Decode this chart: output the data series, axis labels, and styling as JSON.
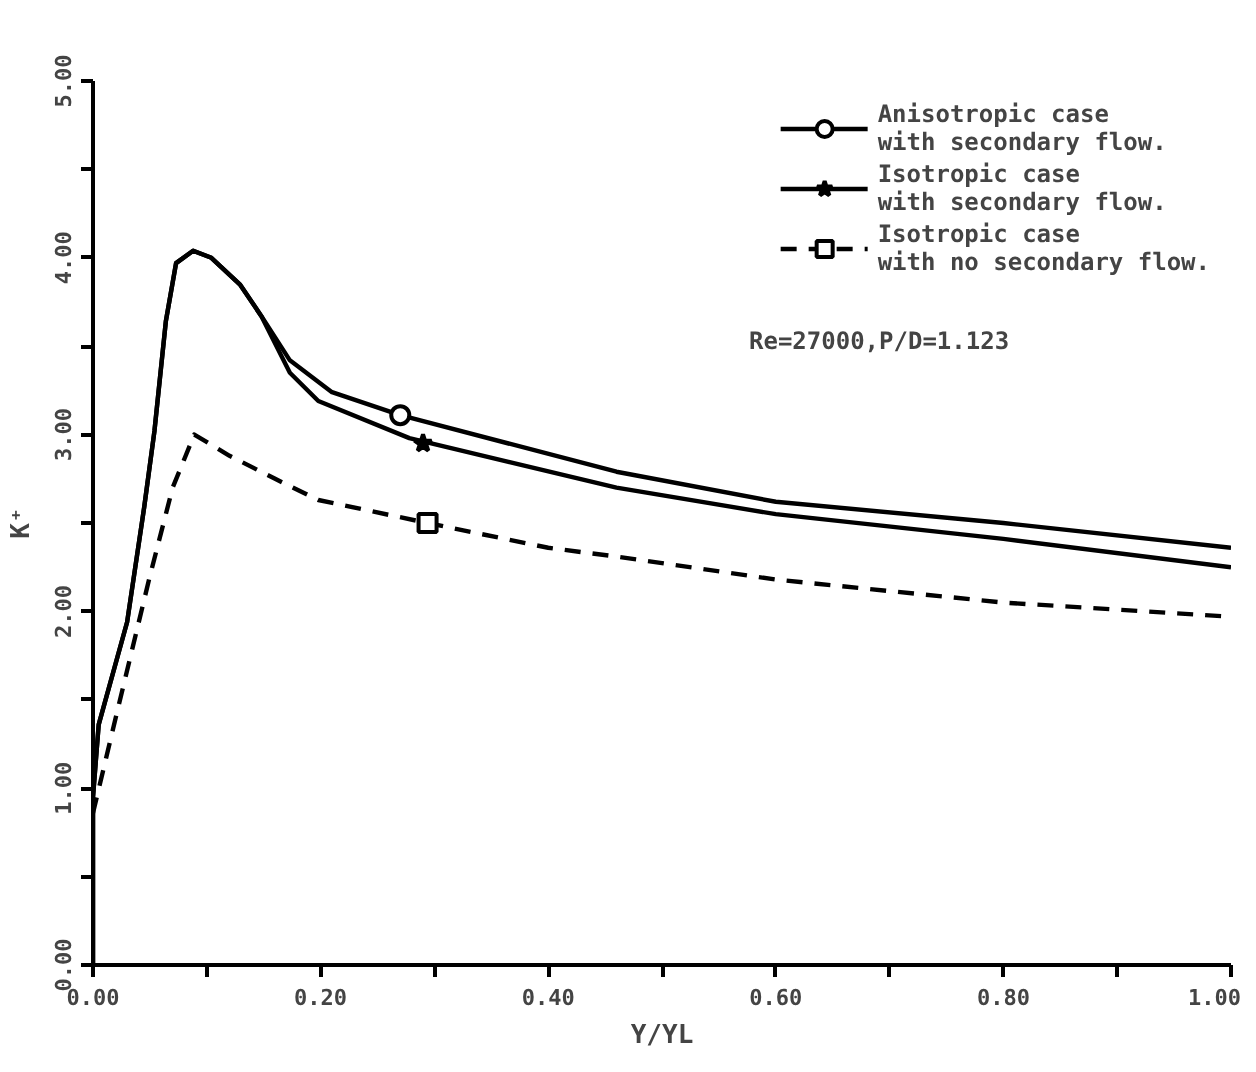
{
  "chart_data": {
    "type": "line",
    "xlabel": "Y/YL",
    "ylabel": "K⁺",
    "xlim": [
      0,
      1.0
    ],
    "ylim": [
      0,
      5.0
    ],
    "xticks": [
      {
        "value": 0,
        "label": "0.00"
      },
      {
        "value": 0.1,
        "label": null
      },
      {
        "value": 0.2,
        "label": "0.20"
      },
      {
        "value": 0.3,
        "label": null
      },
      {
        "value": 0.4,
        "label": "0.40"
      },
      {
        "value": 0.5,
        "label": null
      },
      {
        "value": 0.6,
        "label": "0.60"
      },
      {
        "value": 0.7,
        "label": null
      },
      {
        "value": 0.8,
        "label": "0.80"
      },
      {
        "value": 0.9,
        "label": null
      },
      {
        "value": 1.0,
        "label": "1.00"
      }
    ],
    "yticks": [
      {
        "value": 0,
        "label": "0.00"
      },
      {
        "value": 0.5,
        "label": null
      },
      {
        "value": 1.0,
        "label": "1.00"
      },
      {
        "value": 1.5,
        "label": null
      },
      {
        "value": 2.0,
        "label": "2.00"
      },
      {
        "value": 2.5,
        "label": null
      },
      {
        "value": 3.0,
        "label": "3.00"
      },
      {
        "value": 3.5,
        "label": null
      },
      {
        "value": 4.0,
        "label": "4.00"
      },
      {
        "value": 4.5,
        "label": null
      },
      {
        "value": 5.0,
        "label": "5.00"
      }
    ],
    "grid": false,
    "legend": "top right",
    "annotations": [
      "Re=27000,P/D=1.123"
    ],
    "series": [
      {
        "name": "Anisotropic case\nwith secondary flow.",
        "color": "#000000",
        "line_style": "solid",
        "x": [
          0,
          0,
          0.005,
          0.03,
          0.045,
          0.054,
          0.064,
          0.073,
          0.088,
          0.104,
          0.129,
          0.148,
          0.173,
          0.21,
          0.27,
          0.46,
          0.6,
          0.8,
          1.0
        ],
        "values": [
          0,
          0.95,
          1.36,
          1.94,
          2.59,
          3.02,
          3.64,
          3.97,
          4.04,
          4.0,
          3.85,
          3.67,
          3.42,
          3.24,
          3.11,
          2.79,
          2.62,
          2.5,
          2.36
        ]
      },
      {
        "type": "scatter",
        "marker": "circle",
        "color": "#000000",
        "x": [
          0.27
        ],
        "values": [
          3.11
        ]
      },
      {
        "name": "Isotropic case\nwith secondary flow.",
        "color": "#000000",
        "line_style": "solid",
        "x": [
          0,
          0,
          0.005,
          0.03,
          0.045,
          0.054,
          0.064,
          0.073,
          0.088,
          0.104,
          0.129,
          0.148,
          0.173,
          0.198,
          0.278,
          0.46,
          0.6,
          0.8,
          1.0
        ],
        "values": [
          0,
          0.95,
          1.36,
          1.94,
          2.59,
          3.02,
          3.64,
          3.97,
          4.04,
          4.0,
          3.85,
          3.67,
          3.35,
          3.19,
          2.98,
          2.7,
          2.55,
          2.41,
          2.25
        ]
      },
      {
        "type": "scatter",
        "marker": "star",
        "color": "#000000",
        "x": [
          0.29
        ],
        "values": [
          2.95
        ]
      },
      {
        "name": "Isotropic case\nwith no secondary flow.",
        "color": "#000000",
        "line_style": "dashed",
        "x": [
          0,
          0.02,
          0.05,
          0.07,
          0.089,
          0.12,
          0.16,
          0.198,
          0.294,
          0.4,
          0.46,
          0.6,
          0.8,
          1.0
        ],
        "values": [
          0.86,
          1.4,
          2.2,
          2.7,
          3.0,
          2.88,
          2.75,
          2.63,
          2.5,
          2.36,
          2.31,
          2.18,
          2.05,
          1.97
        ]
      },
      {
        "type": "scatter",
        "marker": "square",
        "color": "#000000",
        "x": [
          0.294
        ],
        "values": [
          2.5
        ]
      }
    ]
  }
}
